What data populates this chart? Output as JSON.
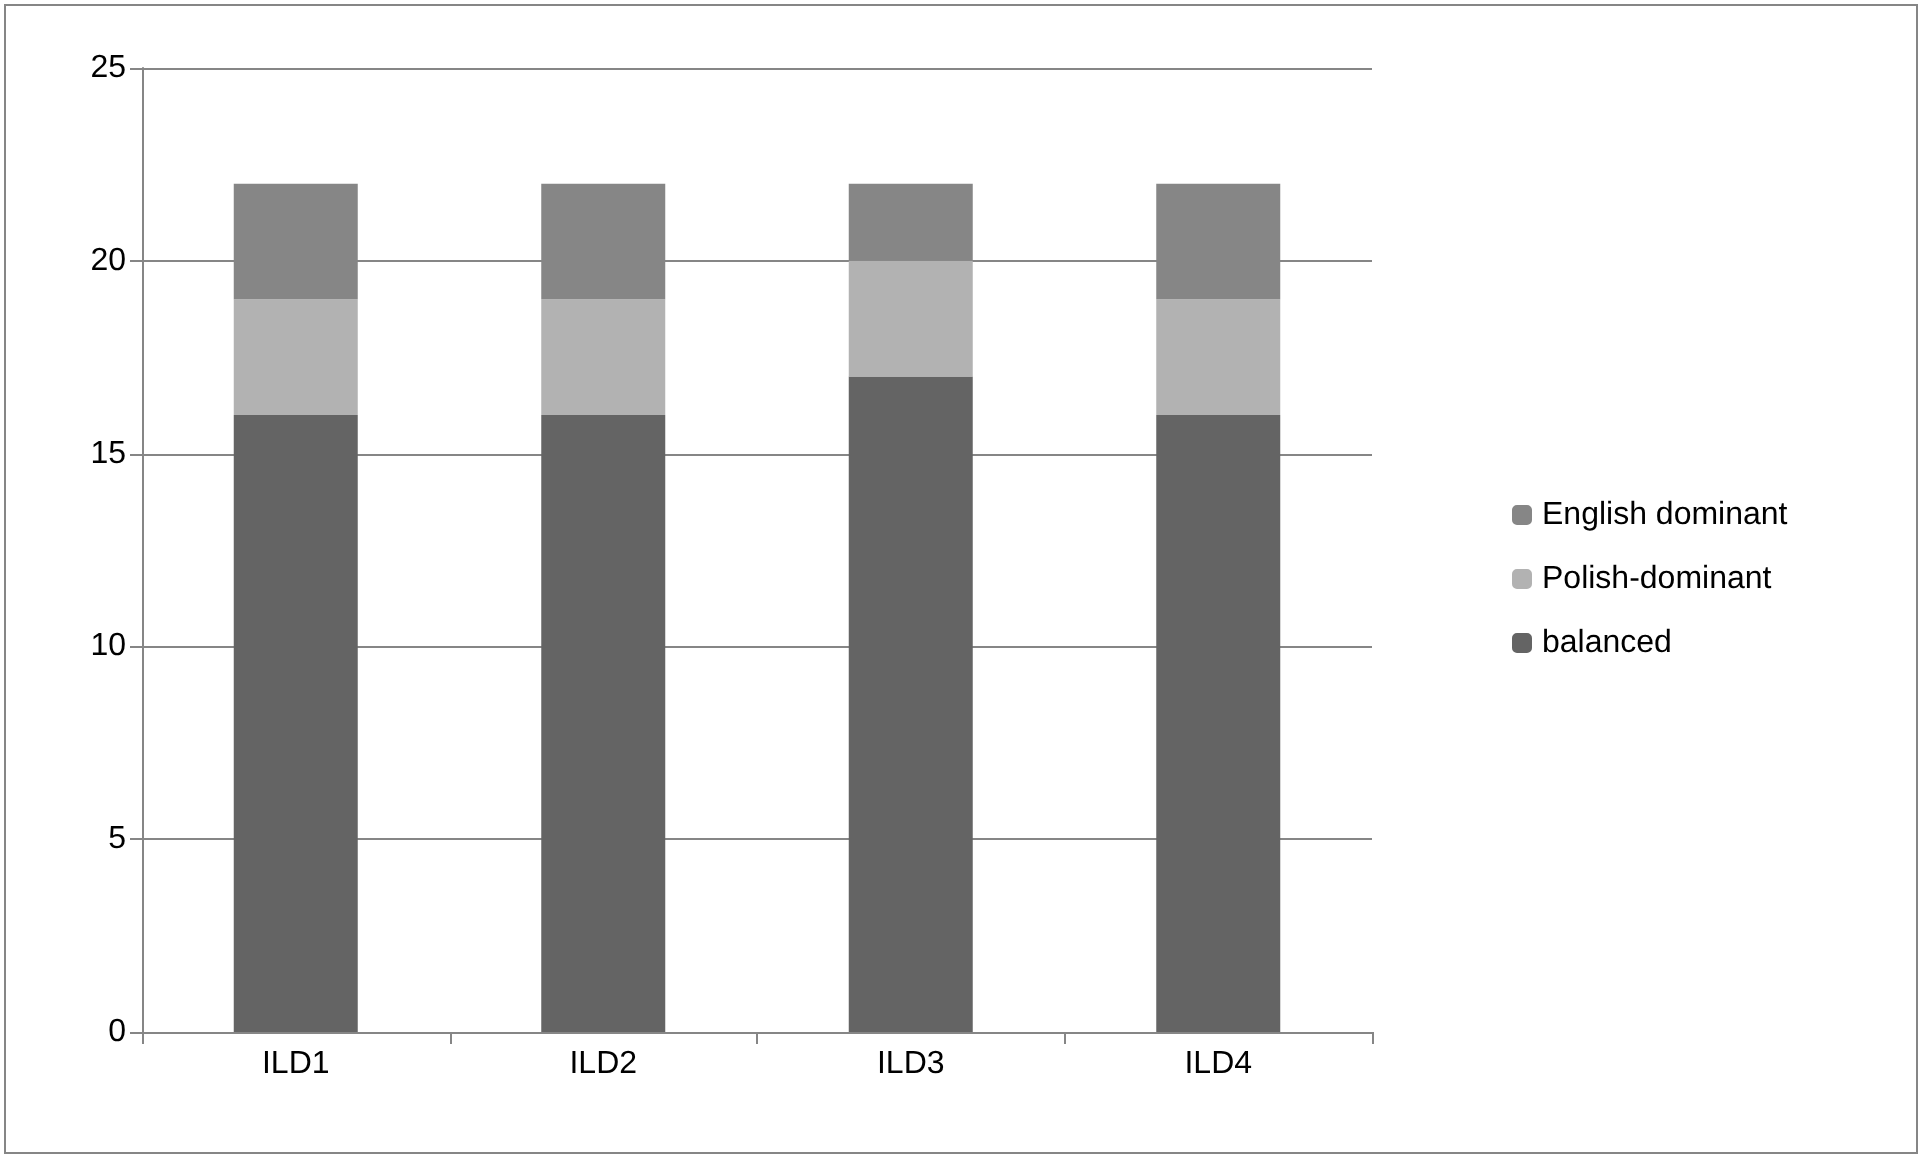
{
  "chart_data": {
    "type": "bar",
    "stacked": true,
    "categories": [
      "ILD1",
      "ILD2",
      "ILD3",
      "ILD4"
    ],
    "series": [
      {
        "name": "balanced",
        "color": "#646464",
        "values": [
          16,
          16,
          17,
          16
        ]
      },
      {
        "name": "Polish-dominant",
        "color": "#b2b2b2",
        "values": [
          3,
          3,
          3,
          3
        ]
      },
      {
        "name": "English dominant",
        "color": "#868686",
        "values": [
          3,
          3,
          2,
          3
        ]
      }
    ],
    "ylim": [
      0,
      25
    ],
    "yticks": [
      0,
      5,
      10,
      15,
      20,
      25
    ],
    "grid": "y",
    "legend": "right"
  }
}
